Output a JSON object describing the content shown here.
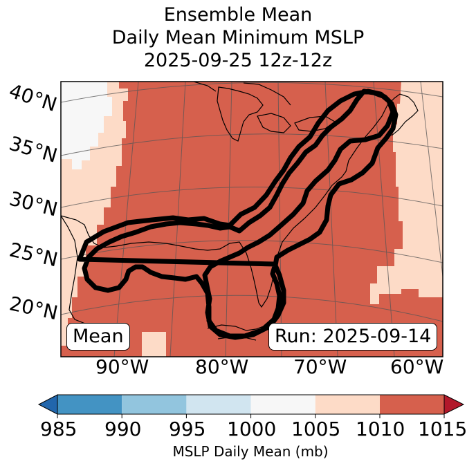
{
  "title": {
    "line1": "Ensemble Mean",
    "line2": "Daily Mean Minimum MSLP",
    "line3": "2025-09-25 12z-12z"
  },
  "map": {
    "lat_labels": [
      "40°N",
      "35°N",
      "30°N",
      "25°N",
      "20°N"
    ],
    "lon_labels": [
      "90°W",
      "80°W",
      "70°W",
      "60°W"
    ],
    "left_badge": "Mean",
    "right_badge": "Run: 2025-09-14",
    "contour_color": "#000000",
    "region_fill_colors": {
      "1000-1005": "#f7f7f7",
      "1005-1010": "#fddbc7",
      "1010-1015": "#d6604d"
    }
  },
  "colorbar": {
    "ticks": [
      "985",
      "990",
      "995",
      "1000",
      "1005",
      "1010",
      "1015"
    ],
    "bins": [
      {
        "range": "<985",
        "color": "#2166ac"
      },
      {
        "range": "985-990",
        "color": "#4393c3"
      },
      {
        "range": "990-995",
        "color": "#92c5de"
      },
      {
        "range": "995-1000",
        "color": "#d1e5f0"
      },
      {
        "range": "1000-1005",
        "color": "#f7f7f7"
      },
      {
        "range": "1005-1010",
        "color": "#fddbc7"
      },
      {
        "range": "1010-1015",
        "color": "#d6604d"
      },
      {
        "range": ">1015",
        "color": "#b2182b"
      }
    ],
    "label": "MSLP Daily Mean (mb)"
  }
}
